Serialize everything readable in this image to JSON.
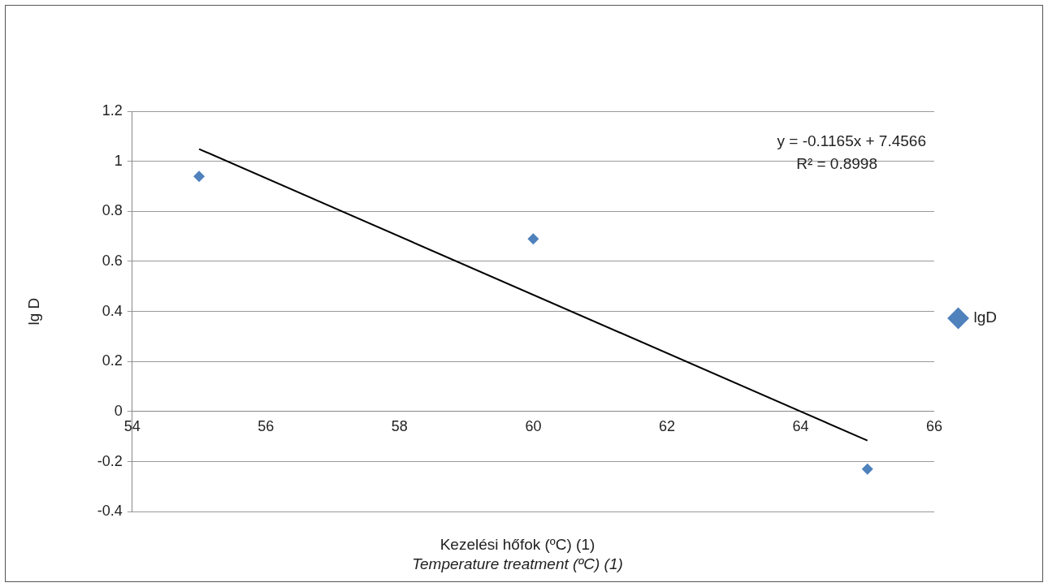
{
  "chart_data": {
    "type": "scatter",
    "xlabel": "Kezelési hőfok (ºC) (1)\nTemperature treatment (ºC) (1)",
    "ylabel": "lg D",
    "series": [
      {
        "name": "lgD",
        "color": "#4f81bd",
        "x": [
          55,
          60,
          65
        ],
        "values": [
          0.94,
          0.69,
          -0.23
        ],
        "marker": "diamond"
      },
      {
        "type": "line",
        "color": "#000000",
        "x": [
          55,
          65
        ],
        "values": [
          1.049,
          -0.116
        ],
        "marker": "none",
        "line_style": "solid"
      }
    ],
    "annotations": [
      "y = -0.1165x + 7.4566",
      "R² = 0.8998"
    ],
    "xlim": [
      54,
      66
    ],
    "xticks": [
      54,
      56,
      58,
      60,
      62,
      64,
      66
    ],
    "ylim": [
      -0.4,
      1.2
    ],
    "yticks": [
      -0.4,
      -0.2,
      0,
      0.2,
      0.4,
      0.6,
      0.8,
      1,
      1.2
    ],
    "grid": "y",
    "legend": "right"
  }
}
